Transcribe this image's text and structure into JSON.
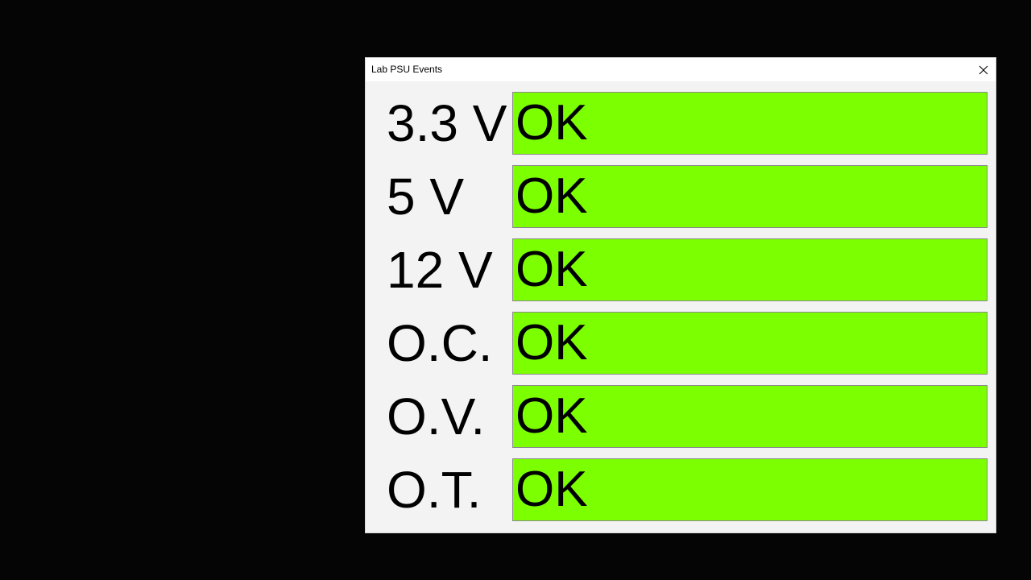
{
  "window": {
    "title": "Lab PSU Events",
    "close_icon": "close-icon"
  },
  "colors": {
    "ok": "#7cff00",
    "window_bg": "#f3f3f3",
    "desktop_bg": "#050505"
  },
  "rows": [
    {
      "label": "3.3 V",
      "status": "OK"
    },
    {
      "label": "5 V",
      "status": "OK"
    },
    {
      "label": "12 V",
      "status": "OK"
    },
    {
      "label": "O.C.",
      "status": "OK"
    },
    {
      "label": "O.V.",
      "status": "OK"
    },
    {
      "label": "O.T.",
      "status": "OK"
    }
  ]
}
